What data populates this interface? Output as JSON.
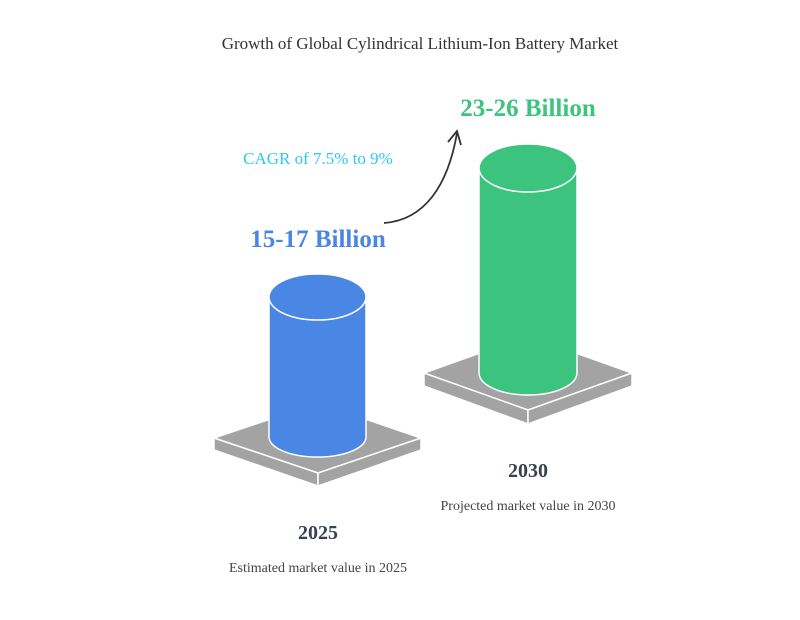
{
  "title": "Growth of Global Cylindrical Lithium-Ion Battery Market",
  "cagr_label": "CAGR of 7.5% to 9%",
  "items": [
    {
      "year": "2025",
      "value": "15-17 Billion",
      "description": "Estimated market value in 2025",
      "color": "#4a86e4"
    },
    {
      "year": "2030",
      "value": "23-26 Billion",
      "description": "Projected market value in 2030",
      "color": "#3cc47f"
    }
  ],
  "colors": {
    "cagr": "#2fc6f6",
    "platform": "#a3a3a3",
    "arrow": "#333333"
  }
}
